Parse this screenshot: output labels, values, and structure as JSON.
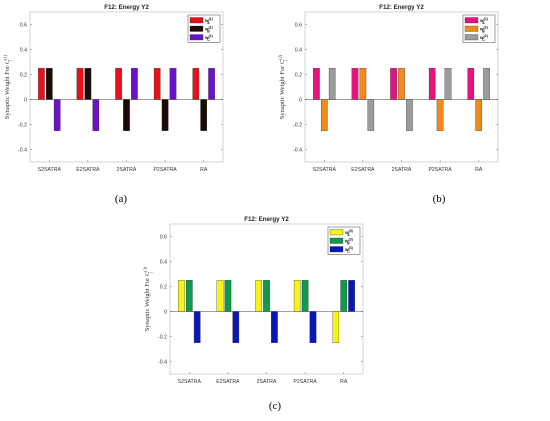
{
  "chart_data": [
    {
      "id": "a",
      "type": "bar",
      "title": "F12: Energy Y2",
      "caption": "(a)",
      "ylabel": "Synaptic Weight For C",
      "ylabel_sup": "(1)",
      "ylabel_sub": "j",
      "ylim": [
        -0.5,
        0.7
      ],
      "yticks": [
        -0.4,
        -0.2,
        0,
        0.2,
        0.4,
        0.6
      ],
      "ytick_labels": [
        "-0.4",
        "-0.2",
        "0",
        "0.2",
        "0.4",
        "0.6"
      ],
      "categories": [
        "S2SATRA",
        "E2SATRA",
        "2SATRA",
        "P2SATRA",
        "RA"
      ],
      "legend_position": "top-right",
      "series": [
        {
          "name": "w",
          "sup": "(1)",
          "sub": "A",
          "color": "#e8111b",
          "values": [
            0.25,
            0.25,
            0.25,
            0.25,
            0.25
          ]
        },
        {
          "name": "w",
          "sup": "(1)",
          "sub": "B",
          "color": "#1c0a06",
          "values": [
            0.25,
            0.25,
            -0.25,
            -0.25,
            -0.25
          ]
        },
        {
          "name": "w",
          "sup": "(1)",
          "sub": "C",
          "color": "#6b12c9",
          "values": [
            -0.25,
            -0.25,
            0.25,
            0.25,
            0.25
          ]
        }
      ]
    },
    {
      "id": "b",
      "type": "bar",
      "title": "F12: Energy Y2",
      "caption": "(b)",
      "ylabel": "Synaptic Weight For C",
      "ylabel_sup": "(2)",
      "ylabel_sub": "j",
      "ylim": [
        -0.5,
        0.7
      ],
      "yticks": [
        -0.4,
        -0.2,
        0,
        0.2,
        0.4,
        0.6
      ],
      "ytick_labels": [
        "-0.4",
        "-0.2",
        "0",
        "0.2",
        "0.4",
        "0.6"
      ],
      "categories": [
        "S2SATRA",
        "E2SATRA",
        "2SATRA",
        "P2SATRA",
        "RA"
      ],
      "legend_position": "top-right",
      "series": [
        {
          "name": "w",
          "sup": "(2)",
          "sub": "A",
          "color": "#e6127d",
          "values": [
            0.25,
            0.25,
            0.25,
            0.25,
            0.25
          ]
        },
        {
          "name": "w",
          "sup": "(2)",
          "sub": "B",
          "color": "#f28a1c",
          "values": [
            -0.25,
            0.25,
            0.25,
            -0.25,
            -0.25
          ]
        },
        {
          "name": "w",
          "sup": "(2)",
          "sub": "C",
          "color": "#9c9c9c",
          "values": [
            0.25,
            -0.25,
            -0.25,
            0.25,
            0.25
          ]
        }
      ]
    },
    {
      "id": "c",
      "type": "bar",
      "title": "F12: Energy Y2",
      "caption": "(c)",
      "ylabel": "Synaptic Weight For C",
      "ylabel_sup": "(3)",
      "ylabel_sub": "j",
      "ylim": [
        -0.5,
        0.7
      ],
      "yticks": [
        -0.4,
        -0.2,
        0,
        0.2,
        0.4,
        0.6
      ],
      "ytick_labels": [
        "-0.4",
        "-0.2",
        "0",
        "0.2",
        "0.4",
        "0.6"
      ],
      "categories": [
        "S2SATRA",
        "E2SATRA",
        "2SATRA",
        "P2SATRA",
        "RA"
      ],
      "legend_position": "top-right",
      "series": [
        {
          "name": "w",
          "sup": "(3)",
          "sub": "A",
          "color": "#f7f21a",
          "values": [
            0.25,
            0.25,
            0.25,
            0.25,
            -0.25
          ]
        },
        {
          "name": "w",
          "sup": "(3)",
          "sub": "B",
          "color": "#0f9a4e",
          "values": [
            0.25,
            0.25,
            0.25,
            0.25,
            0.25
          ]
        },
        {
          "name": "w",
          "sup": "(3)",
          "sub": "C",
          "color": "#0a17b8",
          "values": [
            -0.25,
            -0.25,
            -0.25,
            -0.25,
            0.25
          ]
        }
      ]
    }
  ]
}
